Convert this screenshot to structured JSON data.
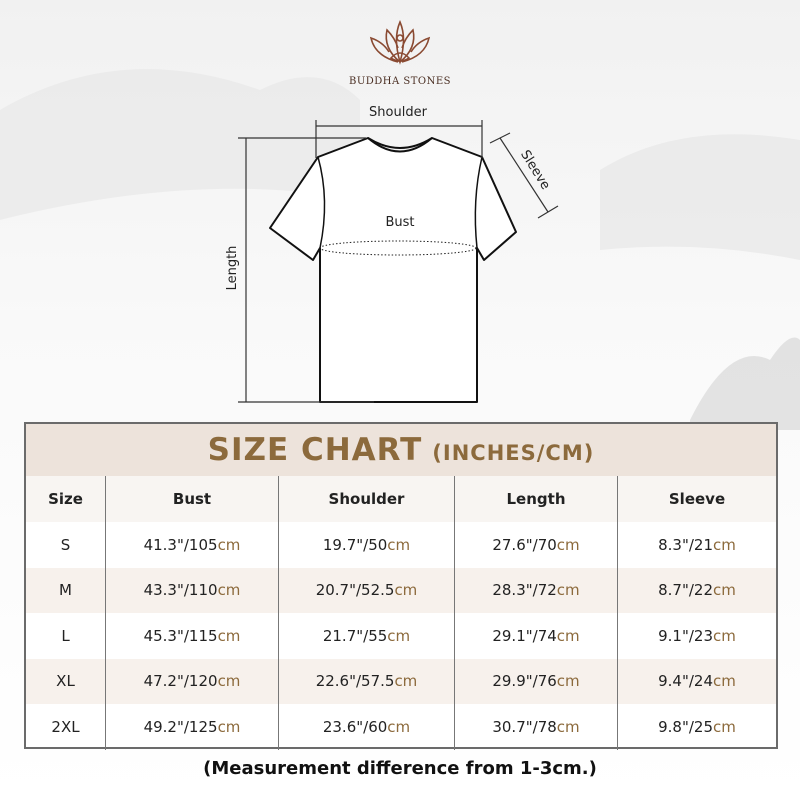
{
  "brand": {
    "name": "BUDDHA STONES"
  },
  "diagram": {
    "shoulder": "Shoulder",
    "sleeve": "Sleeve",
    "bust": "Bust",
    "length": "Length"
  },
  "table": {
    "title": "SIZE CHART",
    "subtitle": "(INCHES/CM)",
    "headers": [
      "Size",
      "Bust",
      "Shoulder",
      "Length",
      "Sleeve"
    ],
    "unit": "cm",
    "rows": [
      {
        "size": "S",
        "bust": "41.3\"/105",
        "shoulder": "19.7\"/50",
        "length": "27.6\"/70",
        "sleeve": "8.3\"/21"
      },
      {
        "size": "M",
        "bust": "43.3\"/110",
        "shoulder": "20.7\"/52.5",
        "length": "28.3\"/72",
        "sleeve": "8.7\"/22"
      },
      {
        "size": "L",
        "bust": "45.3\"/115",
        "shoulder": "21.7\"/55",
        "length": "29.1\"/74",
        "sleeve": "9.1\"/23"
      },
      {
        "size": "XL",
        "bust": "47.2\"/120",
        "shoulder": "22.6\"/57.5",
        "length": "29.9\"/76",
        "sleeve": "9.4\"/24"
      },
      {
        "size": "2XL",
        "bust": "49.2\"/125",
        "shoulder": "23.6\"/60",
        "length": "30.7\"/78",
        "sleeve": "9.8\"/25"
      }
    ]
  },
  "note": "(Measurement difference from 1-3cm.)",
  "colors": {
    "accent": "#8c6a3c",
    "title_band": "#ede3db",
    "alt_row": "#f7f1ec",
    "logo": "#8a4a32"
  }
}
